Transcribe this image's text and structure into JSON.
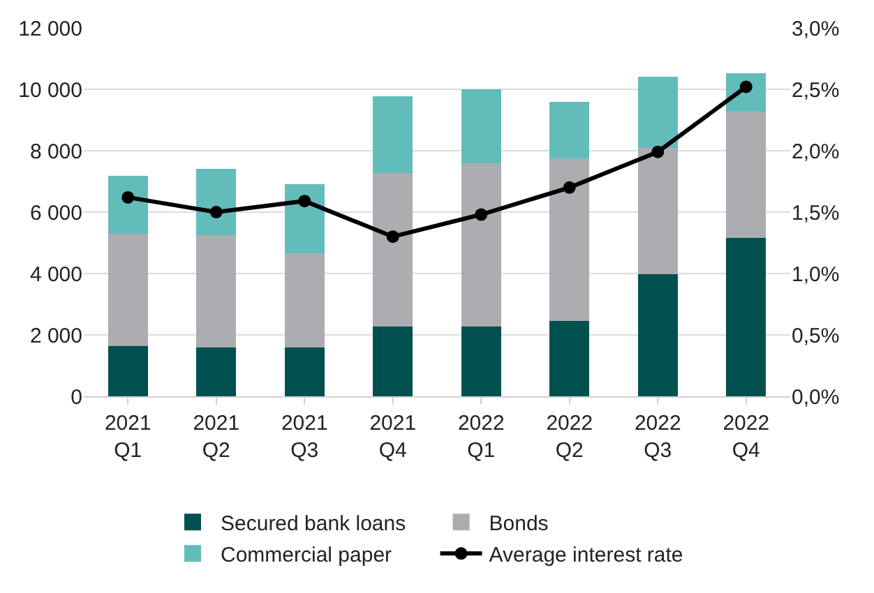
{
  "chart_data": {
    "type": "bar",
    "stacked": true,
    "categories": [
      "2021\nQ1",
      "2021\nQ2",
      "2021\nQ3",
      "2021\nQ4",
      "2022\nQ1",
      "2022\nQ2",
      "2022\nQ3",
      "2022\nQ4"
    ],
    "series": [
      {
        "name": "Secured bank loans",
        "color": "#005050",
        "values": [
          1630,
          1580,
          1600,
          2270,
          2270,
          2450,
          3970,
          5150
        ]
      },
      {
        "name": "Bonds",
        "color": "#acadb0",
        "values": [
          3670,
          3670,
          3050,
          5010,
          5310,
          5310,
          4120,
          4130
        ]
      },
      {
        "name": "Commercial paper",
        "color": "#62bdba",
        "values": [
          1890,
          2170,
          2270,
          2490,
          2420,
          1830,
          2320,
          1240
        ]
      },
      {
        "name": "Average interest rate",
        "color": "#000000",
        "type": "line",
        "axis": "y2",
        "marker": "circle",
        "values": [
          1.62,
          1.5,
          1.59,
          1.3,
          1.48,
          1.7,
          1.99,
          2.52
        ]
      }
    ],
    "ylim": [
      0,
      12000
    ],
    "yticks": [
      0,
      {
        "value": 2000,
        "label": "2 000"
      },
      {
        "value": 4000,
        "label": "4 000"
      },
      {
        "value": 6000,
        "label": "6 000"
      },
      {
        "value": 8000,
        "label": "8 000"
      },
      {
        "value": 10000,
        "label": "10 000"
      },
      {
        "value": 12000,
        "label": "12 000"
      }
    ],
    "y2lim": [
      0,
      3
    ],
    "y2ticks": [
      {
        "value": 0,
        "label": "0,0%"
      },
      {
        "value": 0.5,
        "label": "0,5%"
      },
      {
        "value": 1,
        "label": "1,0%"
      },
      {
        "value": 1.5,
        "label": "1,5%"
      },
      {
        "value": 2,
        "label": "2,0%"
      },
      {
        "value": 2.5,
        "label": "2,5%"
      },
      {
        "value": 3,
        "label": "3,0%"
      }
    ],
    "grid": "y",
    "legend": "bottom"
  }
}
